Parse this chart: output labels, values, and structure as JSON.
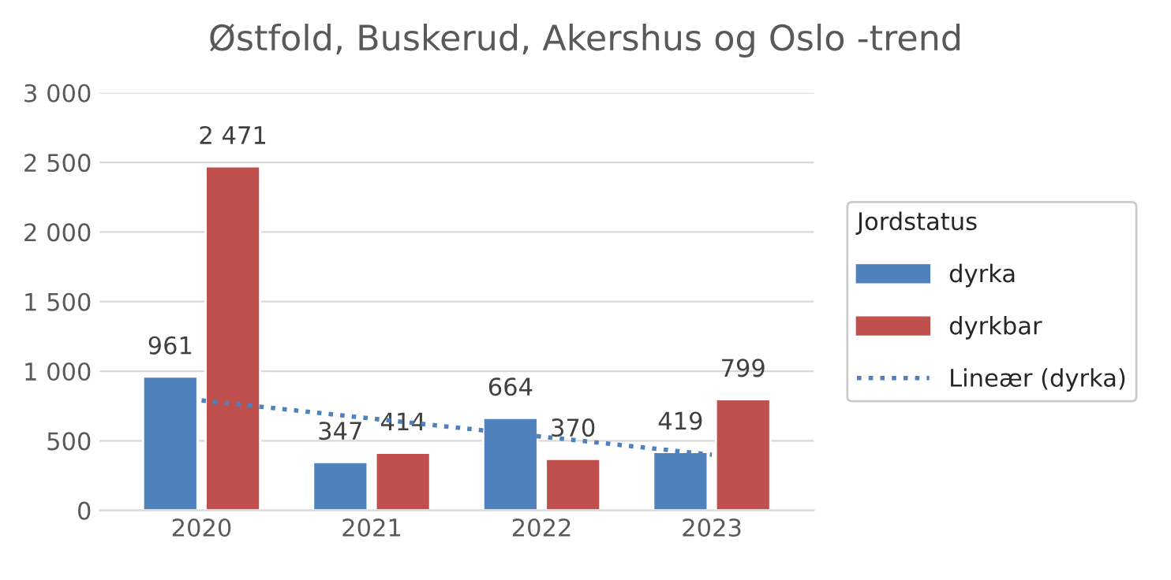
{
  "chart_data": {
    "type": "bar",
    "title": "Østfold, Buskerud, Akershus og Oslo -trend",
    "legend_title": "Jordstatus",
    "categories": [
      "2020",
      "2021",
      "2022",
      "2023"
    ],
    "series": [
      {
        "name": "dyrka",
        "color": "#4f81bd",
        "values": [
          961,
          347,
          664,
          419
        ],
        "value_labels": [
          "961",
          "347",
          "664",
          "419"
        ]
      },
      {
        "name": "dyrkbar",
        "color": "#c0504d",
        "values": [
          2471,
          414,
          370,
          799
        ],
        "value_labels": [
          "2 471",
          "414",
          "370",
          "799"
        ]
      },
      {
        "name": "Lineær (dyrka)",
        "type": "line",
        "color": "#4f81bd",
        "line_style": "dotted",
        "marker": "none",
        "values": [
          790,
          660,
          530,
          400
        ]
      }
    ],
    "ylim": [
      0,
      3000
    ],
    "yticks": [
      0,
      500,
      {
        "value": 1000,
        "label": "1 000"
      },
      {
        "value": 1500,
        "label": "1 500"
      },
      {
        "value": 2000,
        "label": "2 000"
      },
      {
        "value": 2500,
        "label": "2 500"
      },
      {
        "value": 3000,
        "label": "3 000"
      }
    ],
    "grid": "y",
    "legend": "right"
  }
}
